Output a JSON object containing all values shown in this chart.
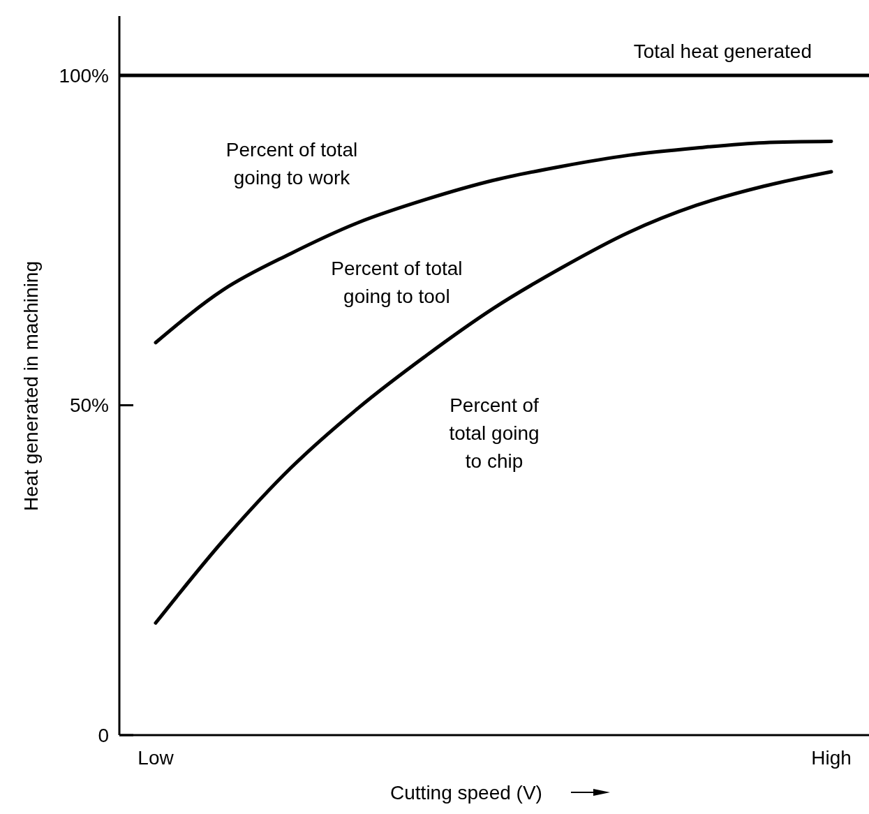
{
  "chart_data": {
    "type": "line",
    "xlabel": "Cutting speed (V)",
    "ylabel": "Heat generated in machining",
    "categories": [
      "Low",
      null,
      null,
      null,
      null,
      null,
      null,
      null,
      null,
      null,
      "High"
    ],
    "ylim": [
      0,
      109
    ],
    "yticks": [
      0,
      {
        "value": 50,
        "label": "50%"
      },
      {
        "value": 100,
        "label": "100%"
      }
    ],
    "series": [
      {
        "color": "#000000",
        "values": [
          59.5,
          67.5,
          73,
          77.7,
          81.2,
          84.1,
          86.2,
          87.9,
          89,
          89.8,
          90
        ]
      },
      {
        "color": "#000000",
        "values": [
          17,
          29.5,
          40.5,
          49.6,
          57.5,
          64.7,
          70.8,
          76.2,
          80.3,
          83.2,
          85.4
        ]
      }
    ],
    "ref_lines": [
      {
        "axis": "y",
        "value": 100,
        "label": "Total heat generated",
        "color": "#000000"
      }
    ],
    "annotations": [
      "Percent of total\ngoing to work",
      "Percent of total\ngoing to tool",
      "Percent of\ntotal going\nto chip"
    ]
  }
}
